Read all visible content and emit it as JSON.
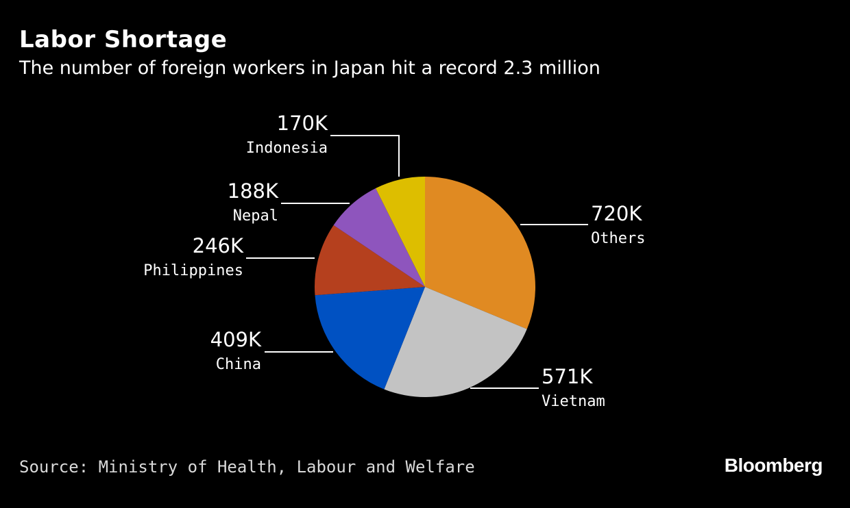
{
  "header": {
    "title": "Labor Shortage",
    "subtitle": "The number of foreign workers in Japan hit a record 2.3 million"
  },
  "footer": {
    "source": "Source: Ministry of Health, Labour and Welfare",
    "brand": "Bloomberg"
  },
  "chart_data": {
    "type": "pie",
    "title": "Labor Shortage",
    "subtitle": "The number of foreign workers in Japan hit a record 2.3 million",
    "categories": [
      "Others",
      "Vietnam",
      "China",
      "Philippines",
      "Nepal",
      "Indonesia"
    ],
    "values": [
      720,
      571,
      409,
      246,
      188,
      170
    ],
    "value_labels": [
      "720K",
      "571K",
      "409K",
      "246K",
      "188K",
      "170K"
    ],
    "colors": [
      "#E08A22",
      "#C3C3C3",
      "#0051C2",
      "#B5401E",
      "#8E55BD",
      "#DDBE00"
    ],
    "start": "12 o'clock",
    "direction": "clockwise",
    "legend": "none",
    "grid": false
  }
}
